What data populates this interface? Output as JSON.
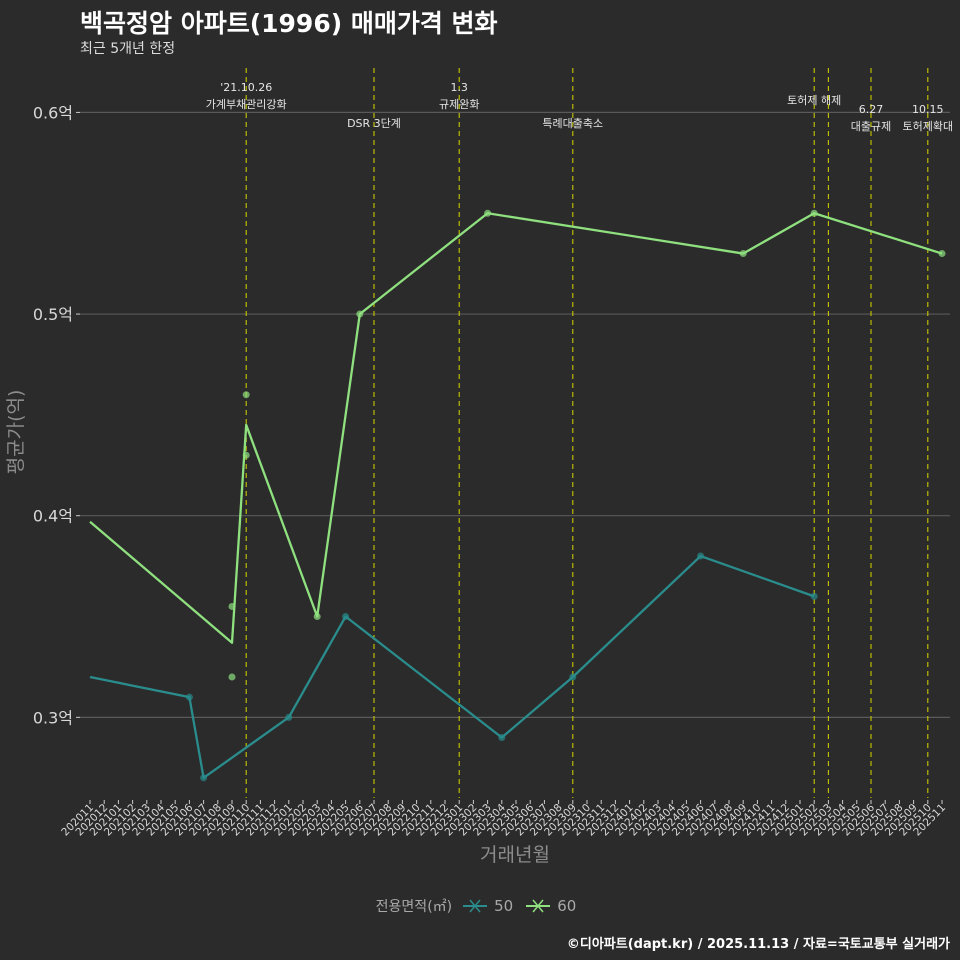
{
  "title": "백곡정암 아파트(1996) 매매가격 변화",
  "subtitle": "최근 5개년 한정",
  "caption": "©디아파트(dapt.kr) / 2025.11.13 / 자료=국토교통부 실거래가",
  "legend": {
    "title": "전용면적(㎡)",
    "items": [
      {
        "label": "50",
        "color": "#2a8c8c"
      },
      {
        "label": "60",
        "color": "#8fe07f"
      }
    ]
  },
  "colors": {
    "background": "#2b2b2b",
    "grid": "#5a5a5a",
    "vline": "#c8c800",
    "axis_text": "#d9d9d9",
    "axis_title": "#8c8c8c"
  },
  "chart_data": {
    "type": "line",
    "xlabel": "거래년월",
    "ylabel": "평균가(억)",
    "ylim": [
      0.26,
      0.625
    ],
    "yticks": [
      0.3,
      0.4,
      0.5,
      0.6
    ],
    "ytick_labels": [
      "0.3억",
      "0.4억",
      "0.5억",
      "0.6억"
    ],
    "categories": [
      "202011",
      "202012",
      "202101",
      "202102",
      "202103",
      "202104",
      "202105",
      "202106",
      "202107",
      "202108",
      "202109",
      "202110",
      "202111",
      "202112",
      "202201",
      "202202",
      "202203",
      "202204",
      "202205",
      "202206",
      "202207",
      "202208",
      "202209",
      "202210",
      "202211",
      "202212",
      "202301",
      "202302",
      "202303",
      "202304",
      "202305",
      "202306",
      "202307",
      "202308",
      "202309",
      "202310",
      "202311",
      "202312",
      "202401",
      "202402",
      "202403",
      "202404",
      "202405",
      "202406",
      "202407",
      "202408",
      "202409",
      "202410",
      "202411",
      "202412",
      "202501",
      "202502",
      "202503",
      "202504",
      "202505",
      "202506",
      "202507",
      "202508",
      "202509",
      "202510",
      "202511"
    ],
    "series": [
      {
        "name": "50",
        "color": "#2a8c8c",
        "line": [
          {
            "x": "202011",
            "y": 0.32
          },
          {
            "x": "202106",
            "y": 0.31
          },
          {
            "x": "202107",
            "y": 0.27
          },
          {
            "x": "202201",
            "y": 0.3
          },
          {
            "x": "202205",
            "y": 0.35
          },
          {
            "x": "202304",
            "y": 0.29
          },
          {
            "x": "202309",
            "y": 0.32
          },
          {
            "x": "202406",
            "y": 0.38
          },
          {
            "x": "202502",
            "y": 0.36
          }
        ],
        "points": [
          {
            "x": "202106",
            "y": 0.31
          },
          {
            "x": "202107",
            "y": 0.27
          },
          {
            "x": "202201",
            "y": 0.3
          },
          {
            "x": "202205",
            "y": 0.35
          },
          {
            "x": "202304",
            "y": 0.29
          },
          {
            "x": "202309",
            "y": 0.32
          },
          {
            "x": "202406",
            "y": 0.38
          },
          {
            "x": "202502",
            "y": 0.36
          }
        ]
      },
      {
        "name": "60",
        "color": "#8fe07f",
        "line": [
          {
            "x": "202011",
            "y": 0.397
          },
          {
            "x": "202109",
            "y": 0.337
          },
          {
            "x": "202110",
            "y": 0.445
          },
          {
            "x": "202203",
            "y": 0.35
          },
          {
            "x": "202206",
            "y": 0.5
          },
          {
            "x": "202303",
            "y": 0.55
          },
          {
            "x": "202409",
            "y": 0.53
          },
          {
            "x": "202502",
            "y": 0.55
          },
          {
            "x": "202511",
            "y": 0.53
          }
        ],
        "points": [
          {
            "x": "202109",
            "y": 0.355
          },
          {
            "x": "202109",
            "y": 0.32
          },
          {
            "x": "202110",
            "y": 0.46
          },
          {
            "x": "202110",
            "y": 0.43
          },
          {
            "x": "202203",
            "y": 0.35
          },
          {
            "x": "202206",
            "y": 0.5
          },
          {
            "x": "202303",
            "y": 0.55
          },
          {
            "x": "202409",
            "y": 0.53
          },
          {
            "x": "202502",
            "y": 0.55
          },
          {
            "x": "202511",
            "y": 0.53
          }
        ]
      }
    ],
    "events": [
      {
        "x": "202110",
        "lines": [
          "'21.10.26",
          "가계부채관리강화"
        ],
        "level": 0
      },
      {
        "x": "202207",
        "lines": [
          "DSR 3단계"
        ],
        "level": 2
      },
      {
        "x": "202301",
        "lines": [
          "1.3",
          "규제완화"
        ],
        "level": 0
      },
      {
        "x": "202309",
        "lines": [
          "특례대출축소"
        ],
        "level": 2
      },
      {
        "x": "202502",
        "lines": [
          "토허제 해제"
        ],
        "level": 1
      },
      {
        "x": "202503",
        "lines": [],
        "level": 1
      },
      {
        "x": "202506",
        "lines": [
          "6.27",
          "대출규제"
        ],
        "level": 3
      },
      {
        "x": "202510",
        "lines": [
          "10.15",
          "토허제확대"
        ],
        "level": 3
      }
    ]
  }
}
